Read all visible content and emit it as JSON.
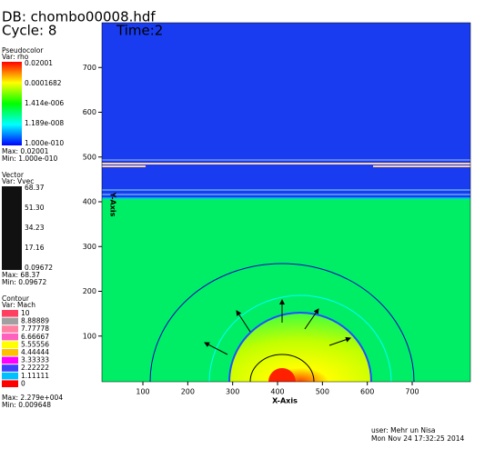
{
  "header": {
    "db": "DB: chombo00008.hdf",
    "cycle": "Cycle: 8",
    "time": "Time:2"
  },
  "pseudocolor": {
    "title": "Pseudocolor",
    "var": "Var: rho",
    "labels": [
      "0.02001",
      "0.0001682",
      "1.414e-006",
      "1.189e-008",
      "1.000e-010"
    ],
    "max": "Max: 0.02001",
    "min": "Min: 1.000e-010"
  },
  "vector": {
    "title": "Vector",
    "var": "Var: Vvec",
    "labels": [
      "68.37",
      "51.30",
      "34.23",
      "17.16",
      "0.09672"
    ],
    "max": "Max: 68.37",
    "min": "Min: 0.09672"
  },
  "contour": {
    "title": "Contour",
    "var": "Var: Mach",
    "labels": [
      "10",
      "8.88889",
      "7.77778",
      "6.66667",
      "5.55556",
      "4.44444",
      "3.33333",
      "2.22222",
      "1.11111",
      "0"
    ],
    "colors": [
      "#ff4060",
      "#a0a0a0",
      "#ff80a0",
      "#ff60c0",
      "#ffff00",
      "#ffc000",
      "#ff00ff",
      "#4040ff",
      "#00c0ff",
      "#ff0000"
    ],
    "max": "Max: 2.279e+004",
    "min": "Min: 0.009648"
  },
  "axes": {
    "x_label": "X-Axis",
    "y_label": "Y-Axis",
    "xticks": [
      100,
      200,
      300,
      400,
      500,
      600,
      700
    ],
    "yticks": [
      100,
      200,
      300,
      400,
      500,
      600,
      700
    ]
  },
  "footer": {
    "user": "user: Mehr un Nisa",
    "date": "Mon Nov 24 17:32:25 2014"
  }
}
